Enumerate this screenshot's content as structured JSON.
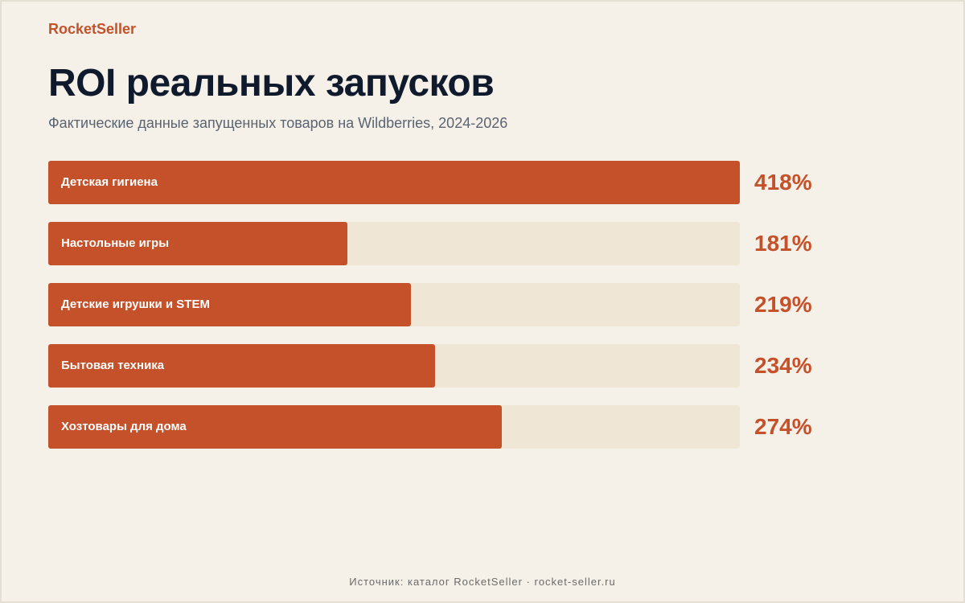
{
  "brand": "RocketSeller",
  "colors": {
    "accent": "#C4512A",
    "track": "#EFE6D6",
    "background": "#F5F0E8",
    "title": "#0F1B2D"
  },
  "chart_data": {
    "type": "bar",
    "orientation": "horizontal",
    "title": "ROI реальных запусков",
    "subtitle": "Фактические данные запущенных товаров на Wildberries, 2024-2026",
    "categories": [
      "Детская гигиена",
      "Настольные игры",
      "Детские игрушки и STEM",
      "Бытовая техника",
      "Хозтовары для дома"
    ],
    "values": [
      418,
      181,
      219,
      234,
      274
    ],
    "value_labels": [
      "418%",
      "181%",
      "219%",
      "234%",
      "274%"
    ],
    "unit": "%",
    "xlim": [
      0,
      418
    ],
    "grid": false,
    "legend": "none"
  },
  "footer": "Источник: каталог RocketSeller · rocket-seller.ru"
}
